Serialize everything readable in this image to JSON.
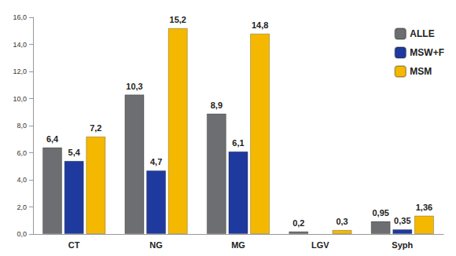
{
  "chart_data": {
    "type": "bar",
    "categories": [
      "CT",
      "NG",
      "MG",
      "LGV",
      "Syph"
    ],
    "series": [
      {
        "name": "ALLE",
        "color": "#6d6e71",
        "values": [
          6.4,
          10.3,
          8.9,
          0.2,
          0.95
        ],
        "value_labels": [
          "6,4",
          "10,3",
          "8,9",
          "0,2",
          "0,95"
        ]
      },
      {
        "name": "MSW+F",
        "color": "#1f3a9e",
        "values": [
          5.4,
          4.7,
          6.1,
          null,
          0.35
        ],
        "value_labels": [
          "5,4",
          "4,7",
          "6,1",
          null,
          "0,35"
        ]
      },
      {
        "name": "MSM",
        "color": "#f5b800",
        "values": [
          7.2,
          15.2,
          14.8,
          0.3,
          1.36
        ],
        "value_labels": [
          "7,2",
          "15,2",
          "14,8",
          "0,3",
          "1,36"
        ]
      }
    ],
    "ylim": [
      0,
      16
    ],
    "yticks": [
      {
        "value": 0,
        "label": "0,0"
      },
      {
        "value": 2,
        "label": "2,0"
      },
      {
        "value": 4,
        "label": "4,0"
      },
      {
        "value": 6,
        "label": "6,0"
      },
      {
        "value": 8,
        "label": "8,0"
      },
      {
        "value": 10,
        "label": "10,0"
      },
      {
        "value": 12,
        "label": "12,0"
      },
      {
        "value": 14,
        "label": "14,0"
      },
      {
        "value": 16,
        "label": "16,0"
      }
    ],
    "grid": false,
    "legend": "top-right",
    "data_labels": true
  }
}
